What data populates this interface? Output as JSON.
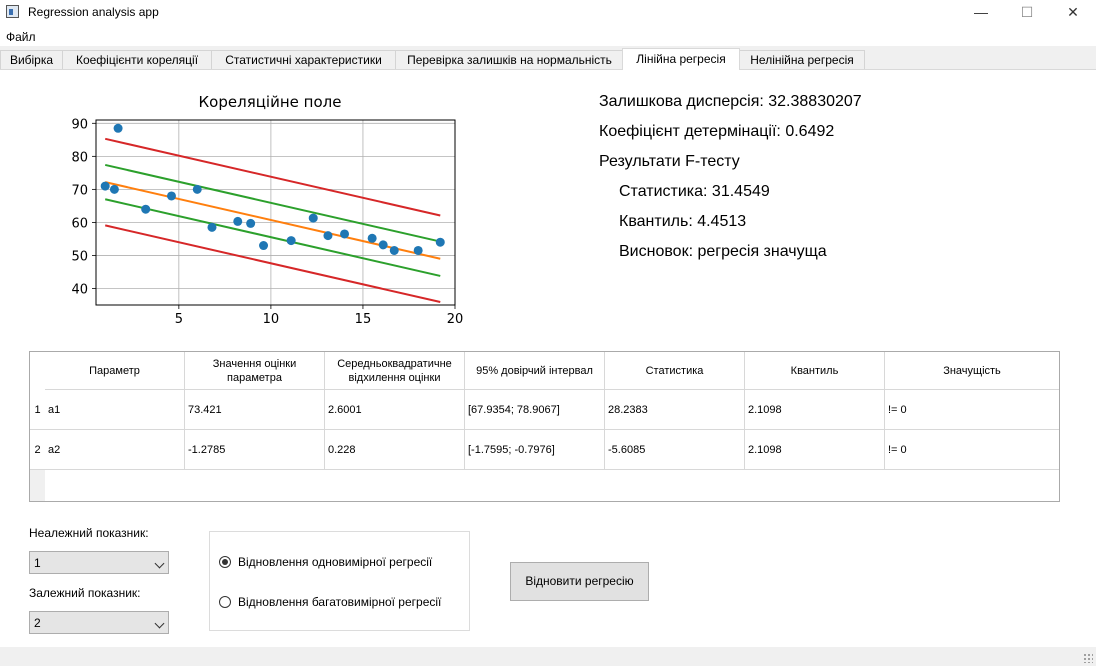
{
  "window": {
    "title": "Regression analysis app",
    "controls": {
      "minimize": "—",
      "maximize": "☐",
      "close": "✕"
    }
  },
  "menu": {
    "file": "Файл"
  },
  "tabs": [
    {
      "label": "Вибірка"
    },
    {
      "label": "Коефіцієнти кореляції"
    },
    {
      "label": "Статистичні характеристики"
    },
    {
      "label": "Перевірка залишків на нормальність"
    },
    {
      "label": "Лінійна регресія",
      "active": true
    },
    {
      "label": "Нелінійна регресія"
    }
  ],
  "chart_data": {
    "type": "scatter",
    "title": "Кореляційне поле",
    "xlim": [
      0.5,
      20
    ],
    "ylim": [
      35,
      91
    ],
    "xticks": [
      "5",
      "10",
      "15",
      "20"
    ],
    "yticks": [
      "40",
      "50",
      "60",
      "70",
      "80",
      "90"
    ],
    "grid": true,
    "points": [
      [
        1,
        71
      ],
      [
        1.5,
        70
      ],
      [
        1.7,
        88.5
      ],
      [
        3.2,
        64
      ],
      [
        4.6,
        68
      ],
      [
        6.0,
        70
      ],
      [
        6.8,
        58.5
      ],
      [
        8.2,
        60.3
      ],
      [
        8.9,
        59.7
      ],
      [
        9.6,
        53
      ],
      [
        11.1,
        54.5
      ],
      [
        12.3,
        61.3
      ],
      [
        13.1,
        56
      ],
      [
        14,
        56.5
      ],
      [
        15.5,
        55.2
      ],
      [
        16.1,
        53.2
      ],
      [
        16.7,
        51.5
      ],
      [
        18,
        51.5
      ],
      [
        19.2,
        54
      ]
    ],
    "lines": [
      {
        "color": "#ff7f0e",
        "from": [
          1,
          72.2
        ],
        "to": [
          19.2,
          49.0
        ]
      },
      {
        "color": "#2ca02c",
        "from": [
          1,
          77.4
        ],
        "to": [
          19.2,
          54.2
        ]
      },
      {
        "color": "#2ca02c",
        "from": [
          1,
          67.0
        ],
        "to": [
          19.2,
          43.8
        ]
      },
      {
        "color": "#d62728",
        "from": [
          1,
          85.3
        ],
        "to": [
          19.2,
          62.1
        ]
      },
      {
        "color": "#d62728",
        "from": [
          1,
          59.1
        ],
        "to": [
          19.2,
          35.9
        ]
      }
    ],
    "point_color": "#1f77b4"
  },
  "stats": {
    "residual_variance": "Залишкова дисперсія: 32.38830207",
    "determination": "Коефіцієнт детермінації: 0.6492",
    "ftest_header": "Результати F-тесту",
    "statistic": "Статистика: 31.4549",
    "quantile": "Квантиль: 4.4513",
    "conclusion": "Висновок: регресія значуща"
  },
  "table": {
    "headers": [
      "Параметр",
      "Значення оцінки параметра",
      "Середньоквадратичне відхилення оцінки",
      "95% довірчий інтервал",
      "Статистика",
      "Квантиль",
      "Значущість"
    ],
    "rows": [
      {
        "num": "1",
        "cells": [
          "a1",
          "73.421",
          "2.6001",
          "[67.9354; 78.9067]",
          "28.2383",
          "2.1098",
          "!= 0"
        ]
      },
      {
        "num": "2",
        "cells": [
          "a2",
          "-1.2785",
          "0.228",
          "[-1.7595; -0.7976]",
          "-5.6085",
          "2.1098",
          "!= 0"
        ]
      }
    ]
  },
  "controls": {
    "independent_label": "Неалежний показник:",
    "independent_value": "1",
    "dependent_label": "Залежний показник:",
    "dependent_value": "2",
    "radio_single": "Відновлення одновимірної регресії",
    "radio_multi": "Відновлення багатовимірної регресії",
    "selected_mode": "single",
    "restore_button": "Відновити регресію"
  }
}
